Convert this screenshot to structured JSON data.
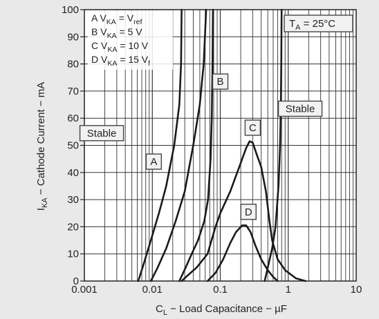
{
  "chart_data": {
    "type": "line",
    "title": "",
    "xlabel": {
      "main": "C",
      "sub": "L",
      "rest": " − Load Capacitance − µF"
    },
    "ylabel": {
      "main": "I",
      "sub": "KA",
      "rest": " − Cathode Current − mA"
    },
    "x_scale": "log",
    "xlim": [
      0.001,
      10
    ],
    "ylim": [
      0,
      100
    ],
    "x_ticks": [
      {
        "v": 0.001,
        "label": "0.001"
      },
      {
        "v": 0.01,
        "label": "0.01"
      },
      {
        "v": 0.1,
        "label": "0.1"
      },
      {
        "v": 1,
        "label": "1"
      },
      {
        "v": 10,
        "label": "10"
      }
    ],
    "y_ticks": [
      {
        "v": 0,
        "label": "0"
      },
      {
        "v": 10,
        "label": "10"
      },
      {
        "v": 20,
        "label": "20"
      },
      {
        "v": 30,
        "label": "30"
      },
      {
        "v": 40,
        "label": "40"
      },
      {
        "v": 50,
        "label": "50"
      },
      {
        "v": 60,
        "label": "60"
      },
      {
        "v": 70,
        "label": "70"
      },
      {
        "v": 80,
        "label": "80"
      },
      {
        "v": 90,
        "label": "90"
      },
      {
        "v": 100,
        "label": "100"
      }
    ],
    "grid": true,
    "legend": {
      "placement": "top-left",
      "entries": [
        {
          "key": "A",
          "var": "V",
          "sub": "KA",
          "eq": " = V",
          "vsub": "ref"
        },
        {
          "key": "B",
          "var": "V",
          "sub": "KA",
          "eq": " = 5 V",
          "vsub": ""
        },
        {
          "key": "C",
          "var": "V",
          "sub": "KA",
          "eq": " = 10 V",
          "vsub": ""
        },
        {
          "key": "D",
          "var": "V",
          "sub": "KA",
          "eq": " = 15 V",
          "vsub": "f"
        }
      ]
    },
    "condition": {
      "main": "T",
      "sub": "A",
      "rest": " = 25°C"
    },
    "region_labels": [
      {
        "text": "Stable",
        "at": [
          0.0018,
          54.5
        ]
      },
      {
        "text": "Stable",
        "at": [
          1.5,
          63.5
        ]
      }
    ],
    "series": [
      {
        "name": "A",
        "label_at": [
          0.0105,
          44
        ],
        "left": [
          [
            0.0062,
            0
          ],
          [
            0.0072,
            5
          ],
          [
            0.0095,
            15
          ],
          [
            0.0125,
            25
          ],
          [
            0.016,
            35
          ],
          [
            0.021,
            50
          ],
          [
            0.025,
            65
          ],
          [
            0.0265,
            80
          ],
          [
            0.027,
            100
          ]
        ],
        "right": [
          [
            0.0095,
            0
          ],
          [
            0.012,
            5
          ],
          [
            0.016,
            12
          ],
          [
            0.022,
            22
          ],
          [
            0.03,
            33
          ],
          [
            0.04,
            50
          ],
          [
            0.05,
            65
          ],
          [
            0.057,
            80
          ],
          [
            0.062,
            100
          ]
        ]
      },
      {
        "name": "B",
        "label_at": [
          0.1,
          73.5
        ],
        "left": [
          [
            0.025,
            0
          ],
          [
            0.031,
            5
          ],
          [
            0.038,
            10
          ],
          [
            0.047,
            15
          ],
          [
            0.058,
            22
          ],
          [
            0.066,
            30
          ],
          [
            0.072,
            45
          ],
          [
            0.075,
            60
          ],
          [
            0.077,
            80
          ],
          [
            0.078,
            100
          ]
        ],
        "right": [
          [
            0.45,
            0
          ],
          [
            0.5,
            5
          ],
          [
            0.58,
            12
          ],
          [
            0.65,
            20
          ],
          [
            0.72,
            35
          ],
          [
            0.76,
            50
          ],
          [
            0.78,
            65
          ],
          [
            0.79,
            80
          ],
          [
            0.8,
            100
          ]
        ]
      },
      {
        "name": "C",
        "label_at": [
          0.3,
          56.5
        ],
        "curve": [
          [
            0.027,
            0
          ],
          [
            0.033,
            2
          ],
          [
            0.045,
            5
          ],
          [
            0.065,
            10
          ],
          [
            0.085,
            20
          ],
          [
            0.1,
            25
          ],
          [
            0.14,
            33
          ],
          [
            0.19,
            42
          ],
          [
            0.24,
            49
          ],
          [
            0.27,
            51.5
          ],
          [
            0.3,
            51
          ],
          [
            0.34,
            47
          ],
          [
            0.4,
            42
          ],
          [
            0.47,
            33
          ],
          [
            0.53,
            22
          ],
          [
            0.58,
            15
          ],
          [
            0.7,
            8
          ],
          [
            0.9,
            4
          ],
          [
            1.3,
            1
          ],
          [
            1.8,
            0
          ]
        ]
      },
      {
        "name": "D",
        "label_at": [
          0.26,
          25.5
        ],
        "curve": [
          [
            0.065,
            0
          ],
          [
            0.085,
            3
          ],
          [
            0.11,
            8
          ],
          [
            0.14,
            14
          ],
          [
            0.17,
            18
          ],
          [
            0.21,
            20.5
          ],
          [
            0.24,
            20.5
          ],
          [
            0.28,
            18
          ],
          [
            0.33,
            13
          ],
          [
            0.4,
            8
          ],
          [
            0.5,
            4
          ],
          [
            0.6,
            1.5
          ],
          [
            0.7,
            0
          ]
        ]
      }
    ]
  }
}
